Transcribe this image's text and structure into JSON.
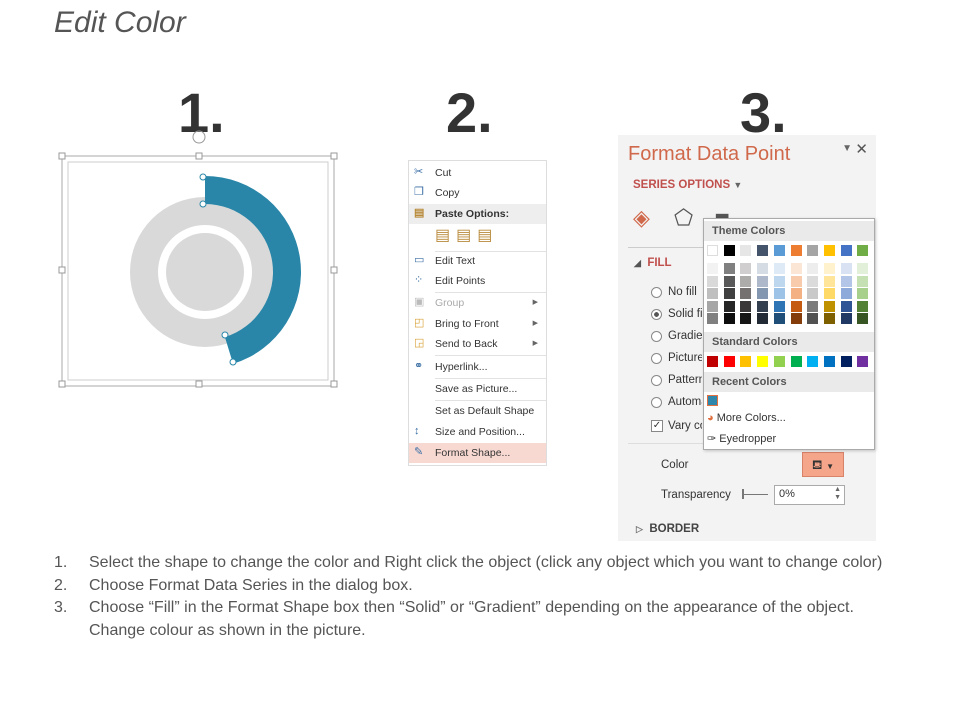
{
  "title": "Edit Color",
  "step_numbers": [
    "1.",
    "2.",
    "3."
  ],
  "context_menu": {
    "items": [
      {
        "label": "Cut",
        "icon": "scissors-icon"
      },
      {
        "label": "Copy",
        "icon": "copy-icon"
      },
      {
        "label": "Paste Options:",
        "icon": "paste-icon"
      },
      {
        "label": "Edit Text",
        "icon": "edit-text-icon"
      },
      {
        "label": "Edit Points",
        "icon": "edit-points-icon"
      },
      {
        "label": "Group",
        "icon": "group-icon"
      },
      {
        "label": "Bring to Front",
        "icon": "bring-front-icon"
      },
      {
        "label": "Send to Back",
        "icon": "send-back-icon"
      },
      {
        "label": "Hyperlink...",
        "icon": "hyperlink-icon"
      },
      {
        "label": "Save as Picture..."
      },
      {
        "label": "Set as Default Shape"
      },
      {
        "label": "Size and Position...",
        "icon": "size-icon"
      },
      {
        "label": "Format Shape...",
        "icon": "format-shape-icon"
      }
    ]
  },
  "panel": {
    "title": "Format Data Point",
    "series_options": "SERIES OPTIONS",
    "fill": "FILL",
    "options": [
      "No fill",
      "Solid fill",
      "Gradient fill",
      "Picture or texture fill",
      "Pattern fill",
      "Automatic"
    ],
    "vary": "Vary colors by point",
    "color_label": "Color",
    "transparency_label": "Transparency",
    "transparency_value": "0%",
    "border": "BORDER"
  },
  "dropdown": {
    "theme_header": "Theme Colors",
    "standard_header": "Standard Colors",
    "recent_header": "Recent Colors",
    "more_colors": "More Colors...",
    "eyedropper": "Eyedropper",
    "theme_top": [
      "#ffffff",
      "#000000",
      "#e7e6e6",
      "#44546a",
      "#5b9bd5",
      "#ed7d31",
      "#a5a5a5",
      "#ffc000",
      "#4472c4",
      "#70ad47"
    ],
    "theme_shades": [
      [
        "#f2f2f2",
        "#d9d9d9",
        "#bfbfbf",
        "#a6a6a6",
        "#808080"
      ],
      [
        "#808080",
        "#595959",
        "#404040",
        "#262626",
        "#0d0d0d"
      ],
      [
        "#d0cece",
        "#aeabab",
        "#757171",
        "#3a3838",
        "#171616"
      ],
      [
        "#d6dce4",
        "#adb9ca",
        "#8497b0",
        "#333f4f",
        "#222a35"
      ],
      [
        "#deebf6",
        "#bdd7ee",
        "#9dc3e6",
        "#2e75b5",
        "#1f4e79"
      ],
      [
        "#fbe5d5",
        "#f7cbac",
        "#f4b183",
        "#c55a11",
        "#843c0b"
      ],
      [
        "#ededed",
        "#dbdbdb",
        "#c9c9c9",
        "#7b7b7b",
        "#525252"
      ],
      [
        "#fff2cc",
        "#fee599",
        "#ffd965",
        "#bf9000",
        "#7f6000"
      ],
      [
        "#d9e2f3",
        "#b4c6e7",
        "#8eaadb",
        "#2f5496",
        "#1f3864"
      ],
      [
        "#e2efd9",
        "#c5e0b3",
        "#a8d08d",
        "#538135",
        "#375623"
      ]
    ],
    "standard": [
      "#c00000",
      "#ff0000",
      "#ffc000",
      "#ffff00",
      "#92d050",
      "#00b050",
      "#00b0f0",
      "#0070c0",
      "#002060",
      "#7030a0"
    ],
    "recent": [
      "#2e86ab"
    ]
  },
  "colors": {
    "accent": "#2986a8",
    "donut_gray": "#d9d9d9",
    "panel_title": "#d0694b"
  },
  "steps": [
    {
      "n": "1.",
      "text": "Select the shape to change the color and Right click the object (click any object which you want to change color)"
    },
    {
      "n": "2.",
      "text": "Choose Format Data Series in the dialog box."
    },
    {
      "n": "3.",
      "text": "Choose “Fill” in the Format Shape box then “Solid” or “Gradient” depending on the appearance of the object. Change colour as shown in the picture."
    }
  ]
}
